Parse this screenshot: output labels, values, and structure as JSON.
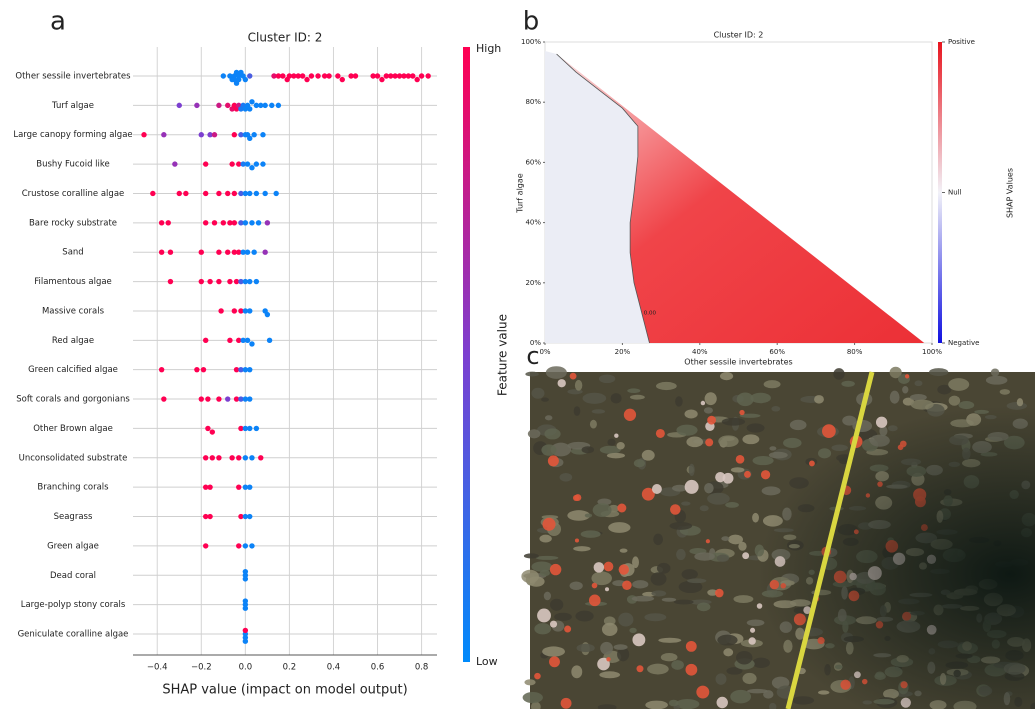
{
  "panels": [
    "a",
    "b",
    "c"
  ],
  "chart_data": [
    {
      "type": "beeswarm",
      "title": "Cluster ID: 2",
      "xlabel": "SHAP value (impact on model output)",
      "categories": [
        "Other sessile invertebrates",
        "Turf algae",
        "Large canopy forming algae",
        "Bushy Fucoid like",
        "Crustose coralline algae",
        "Bare rocky substrate",
        "Sand",
        "Filamentous algae",
        "Massive corals",
        "Red algae",
        "Green calcified algae",
        "Soft corals and gorgonians",
        "Other Brown algae",
        "Unconsolidated substrate",
        "Branching corals",
        "Seagrass",
        "Green algae",
        "Dead coral",
        "Large-polyp stony corals",
        "Geniculate coralline algae"
      ],
      "shap": [
        [
          -0.1,
          -0.07,
          -0.06,
          -0.05,
          -0.05,
          -0.04,
          -0.04,
          -0.03,
          -0.03,
          -0.02,
          -0.01,
          0.0,
          0.02,
          0.13,
          0.15,
          0.17,
          0.19,
          0.2,
          0.22,
          0.24,
          0.26,
          0.28,
          0.3,
          0.33,
          0.36,
          0.38,
          0.42,
          0.44,
          0.48,
          0.5,
          0.58,
          0.6,
          0.62,
          0.64,
          0.66,
          0.68,
          0.7,
          0.72,
          0.74,
          0.76,
          0.78,
          0.8,
          0.83
        ],
        [
          -0.3,
          -0.22,
          -0.12,
          -0.08,
          -0.06,
          -0.05,
          -0.04,
          -0.03,
          -0.02,
          -0.01,
          0.0,
          0.01,
          0.02,
          0.03,
          0.05,
          0.07,
          0.09,
          0.12,
          0.15
        ],
        [
          -0.46,
          -0.37,
          -0.2,
          -0.16,
          -0.14,
          -0.05,
          -0.02,
          0.0,
          0.01,
          0.02,
          0.04,
          0.08
        ],
        [
          -0.32,
          -0.18,
          -0.06,
          -0.03,
          -0.01,
          0.01,
          0.03,
          0.05,
          0.08
        ],
        [
          -0.42,
          -0.3,
          -0.27,
          -0.18,
          -0.12,
          -0.08,
          -0.05,
          -0.02,
          0.0,
          0.02,
          0.05,
          0.09,
          0.14
        ],
        [
          -0.38,
          -0.35,
          -0.18,
          -0.14,
          -0.1,
          -0.07,
          -0.05,
          -0.02,
          0.0,
          0.03,
          0.06,
          0.1
        ],
        [
          -0.38,
          -0.34,
          -0.2,
          -0.12,
          -0.08,
          -0.05,
          -0.03,
          -0.01,
          0.01,
          0.04,
          0.09
        ],
        [
          -0.34,
          -0.2,
          -0.16,
          -0.12,
          -0.07,
          -0.04,
          -0.02,
          0.0,
          0.02,
          0.05
        ],
        [
          -0.11,
          -0.05,
          -0.02,
          0.0,
          0.02,
          0.09,
          0.1
        ],
        [
          -0.18,
          -0.07,
          -0.03,
          -0.01,
          0.01,
          0.03,
          0.11
        ],
        [
          -0.38,
          -0.22,
          -0.19,
          -0.04,
          -0.02,
          0.0,
          0.02
        ],
        [
          -0.37,
          -0.2,
          -0.17,
          -0.12,
          -0.08,
          -0.04,
          -0.02,
          0.0,
          0.02
        ],
        [
          -0.17,
          -0.15,
          -0.02,
          0.0,
          0.02,
          0.05
        ],
        [
          -0.18,
          -0.15,
          -0.12,
          -0.06,
          -0.03,
          0.0,
          0.03,
          0.07
        ],
        [
          -0.18,
          -0.16,
          -0.03,
          0.0,
          0.02
        ],
        [
          -0.18,
          -0.16,
          -0.02,
          0.0,
          0.02
        ],
        [
          -0.18,
          -0.03,
          0.0,
          0.03
        ],
        [
          0.0,
          0.0,
          0.0
        ],
        [
          0.0,
          0.0,
          0.0
        ],
        [
          0.0,
          0.0,
          0.0,
          0.0
        ]
      ],
      "feature_values": [
        [
          0.05,
          0.05,
          0.05,
          0.05,
          0.05,
          0.05,
          0.05,
          0.05,
          0.05,
          0.05,
          0.05,
          0.05,
          0.3,
          0.9,
          1,
          1,
          1,
          1,
          1,
          1,
          1,
          1,
          1,
          1,
          1,
          1,
          1,
          1,
          1,
          1,
          1,
          1,
          1,
          1,
          1,
          1,
          1,
          1,
          1,
          1,
          1,
          1,
          1
        ],
        [
          0.5,
          0.6,
          0.8,
          0.9,
          0.9,
          1,
          1,
          0.8,
          0.1,
          0.1,
          0.05,
          0.05,
          0.05,
          0.05,
          0.05,
          0.05,
          0.05,
          0.05,
          0.05
        ],
        [
          1,
          0.6,
          0.5,
          0.5,
          0.8,
          1,
          0.3,
          0.05,
          0.05,
          0.05,
          0.05,
          0.05
        ],
        [
          0.6,
          1,
          1,
          1,
          0.1,
          0.05,
          0.05,
          0.05,
          0.05
        ],
        [
          1,
          1,
          1,
          1,
          1,
          1,
          1,
          0.3,
          0.05,
          0.05,
          0.05,
          0.05,
          0.05
        ],
        [
          1,
          1,
          1,
          1,
          1,
          1,
          1,
          0.3,
          0.05,
          0.05,
          0.05,
          0.6
        ],
        [
          1,
          1,
          1,
          1,
          1,
          1,
          1,
          0.05,
          0.05,
          0.05,
          0.6
        ],
        [
          1,
          1,
          1,
          1,
          1,
          1,
          0.3,
          0.05,
          0.05,
          0.05
        ],
        [
          1,
          1,
          1,
          0.05,
          0.05,
          0.05,
          0.05
        ],
        [
          1,
          1,
          1,
          0.05,
          0.05,
          0.05,
          0.05
        ],
        [
          1,
          1,
          1,
          1,
          0.3,
          0.05,
          0.05
        ],
        [
          1,
          1,
          1,
          1,
          0.5,
          1,
          0.3,
          0.05,
          0.05
        ],
        [
          1,
          1,
          1,
          0.05,
          0.05,
          0.05
        ],
        [
          1,
          1,
          1,
          1,
          1,
          0.05,
          0.05,
          1
        ],
        [
          1,
          1,
          1,
          0.05,
          0.05
        ],
        [
          1,
          1,
          1,
          0.05,
          0.05
        ],
        [
          1,
          1,
          0.05,
          0.05
        ],
        [
          0.05,
          0.05,
          0.05
        ],
        [
          0.05,
          0.05,
          0.05
        ],
        [
          0.05,
          0.05,
          1,
          0.05
        ]
      ],
      "xlim": [
        -0.51,
        0.87
      ],
      "xticks": [
        {
          "value": -0.4,
          "label": "−0.4"
        },
        {
          "value": -0.2,
          "label": "−0.2"
        },
        {
          "value": 0,
          "label": "0.0"
        },
        0.2,
        0.4,
        0.6,
        0.8
      ],
      "grid": true,
      "colorbar": {
        "label": "Feature value",
        "high": "High",
        "low": "Low",
        "colors": [
          "#008afb",
          "#7c3fd0",
          "#ff0052"
        ]
      }
    },
    {
      "type": "contour",
      "title": "Cluster ID: 2",
      "xlabel": "Other sessile invertebrates",
      "ylabel": "Turf algae",
      "xlim": [
        0,
        100
      ],
      "ylim": [
        0,
        100
      ],
      "xticks": [
        {
          "value": 0,
          "label": "0%"
        },
        {
          "value": 20,
          "label": "20%"
        },
        {
          "value": 40,
          "label": "40%"
        },
        {
          "value": 60,
          "label": "60%"
        },
        {
          "value": 80,
          "label": "80%"
        },
        {
          "value": 100,
          "label": "100%"
        }
      ],
      "yticks": [
        {
          "value": 0,
          "label": "0%"
        },
        {
          "value": 20,
          "label": "20%"
        },
        {
          "value": 40,
          "label": "40%"
        },
        {
          "value": 60,
          "label": "60%"
        },
        {
          "value": 80,
          "label": "80%"
        },
        {
          "value": 100,
          "label": "100%"
        }
      ],
      "contour": {
        "label": "0.00",
        "x": [
          3,
          8,
          14,
          20,
          24,
          24,
          23,
          22,
          22,
          23,
          25,
          27
        ],
        "y": [
          96,
          90,
          84,
          78,
          72,
          62,
          50,
          40,
          30,
          20,
          10,
          0
        ]
      },
      "colorbar": {
        "label": "SHAP Values",
        "labels": [
          "Positive",
          "Null",
          "Negative"
        ],
        "colors": [
          "#e8141e",
          "#f2f2f8",
          "#1010e0"
        ]
      }
    }
  ]
}
